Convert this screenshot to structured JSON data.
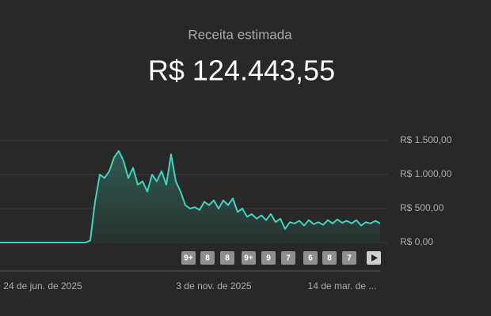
{
  "header": {
    "title": "Receita estimada",
    "total": "R$ 124.443,55"
  },
  "chart_data": {
    "type": "line",
    "color": "#3fd3bf",
    "categories": [
      null,
      null,
      null,
      null,
      null,
      null,
      null,
      null,
      null,
      "24 de jun. de 2025",
      null,
      null,
      null,
      null,
      null,
      null,
      null,
      null,
      null,
      null,
      null,
      null,
      null,
      null,
      null,
      null,
      null,
      null,
      null,
      null,
      null,
      null,
      null,
      null,
      null,
      null,
      null,
      null,
      null,
      null,
      null,
      null,
      null,
      null,
      null,
      "3 de nov. de 2025",
      null,
      null,
      null,
      null,
      null,
      null,
      null,
      null,
      null,
      null,
      null,
      null,
      null,
      null,
      null,
      null,
      null,
      null,
      null,
      null,
      null,
      null,
      null,
      null,
      null,
      null,
      "14 de mar. de ...",
      null,
      null,
      null,
      null,
      null,
      null,
      null,
      null
    ],
    "values": [
      0,
      0,
      0,
      0,
      0,
      0,
      0,
      0,
      0,
      0,
      0,
      0,
      0,
      0,
      0,
      0,
      0,
      0,
      0,
      30,
      600,
      1000,
      950,
      1050,
      1250,
      1350,
      1200,
      950,
      1100,
      850,
      900,
      750,
      1000,
      900,
      1050,
      850,
      1300,
      900,
      750,
      550,
      500,
      520,
      480,
      600,
      550,
      620,
      500,
      620,
      550,
      650,
      450,
      500,
      380,
      420,
      350,
      400,
      330,
      420,
      300,
      350,
      200,
      300,
      280,
      320,
      250,
      330,
      270,
      300,
      260,
      330,
      280,
      340,
      290,
      320,
      280,
      330,
      250,
      300,
      280,
      320,
      280
    ],
    "ylim": [
      0,
      1500
    ],
    "yticks": [
      {
        "value": 0,
        "label": "R$ 0,00"
      },
      {
        "value": 500,
        "label": "R$ 500,00"
      },
      {
        "value": 1000,
        "label": "R$ 1.000,00"
      },
      {
        "value": 1500,
        "label": "R$ 1.500,00"
      }
    ],
    "grid": true
  },
  "badges": [
    "9+",
    "8",
    "8",
    "9+",
    "9",
    "7",
    "6",
    "8",
    "7"
  ]
}
